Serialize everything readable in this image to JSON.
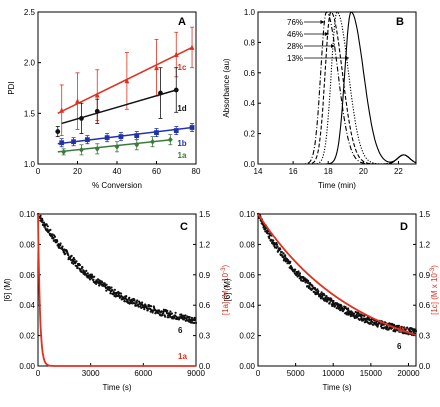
{
  "colors": {
    "red": "#e0301e",
    "black": "#111111",
    "blue": "#2233aa",
    "green": "#3a7a3a",
    "axis": "#000000"
  },
  "chart_data": [
    {
      "panel": "A",
      "type": "scatter",
      "xlabel": "% Conversion",
      "ylabel": "PDI",
      "xlim": [
        0,
        80
      ],
      "ylim": [
        1.0,
        2.5
      ],
      "xticks": [
        "0",
        "20",
        "40",
        "60",
        "80"
      ],
      "yticks": [
        "1.0",
        "1.5",
        "2.0",
        "2.5"
      ],
      "series": [
        {
          "name": "1c",
          "color": "#e0301e",
          "marker": "triangle",
          "x": [
            12,
            20,
            30,
            45,
            60,
            70,
            78
          ],
          "y": [
            1.53,
            1.62,
            1.68,
            1.82,
            1.95,
            2.08,
            2.15
          ],
          "err": [
            0.25,
            0.28,
            0.25,
            0.28,
            0.28,
            0.22,
            0.2
          ],
          "fit": [
            [
              10,
              1.5
            ],
            [
              78,
              2.15
            ]
          ]
        },
        {
          "name": "1d",
          "color": "#111111",
          "marker": "circle",
          "x": [
            10,
            22,
            30,
            62,
            70
          ],
          "y": [
            1.32,
            1.45,
            1.52,
            1.7,
            1.73
          ],
          "err": [
            0.05,
            0.15,
            0.12,
            0.25,
            0.22
          ],
          "fit": [
            [
              12,
              1.4
            ],
            [
              70,
              1.73
            ]
          ]
        },
        {
          "name": "1b",
          "color": "#2233aa",
          "marker": "square",
          "x": [
            12,
            18,
            25,
            35,
            42,
            50,
            60,
            70,
            78
          ],
          "y": [
            1.21,
            1.22,
            1.24,
            1.26,
            1.27,
            1.28,
            1.31,
            1.33,
            1.36
          ],
          "err": [
            0.04,
            0.04,
            0.04,
            0.04,
            0.04,
            0.04,
            0.04,
            0.04,
            0.04
          ],
          "fit": [
            [
              10,
              1.2
            ],
            [
              78,
              1.36
            ]
          ]
        },
        {
          "name": "1a",
          "color": "#3a7a3a",
          "marker": "diamond",
          "x": [
            13,
            22,
            30,
            40,
            50,
            58,
            67
          ],
          "y": [
            1.12,
            1.14,
            1.15,
            1.17,
            1.19,
            1.22,
            1.24
          ],
          "err": [
            0.03,
            0.05,
            0.05,
            0.05,
            0.05,
            0.05,
            0.05
          ],
          "fit": [
            [
              10,
              1.12
            ],
            [
              68,
              1.24
            ]
          ]
        }
      ]
    },
    {
      "panel": "B",
      "type": "line",
      "xlabel": "Time (min)",
      "ylabel": "Absorbance (au)",
      "xlim": [
        14,
        23
      ],
      "ylim": [
        0.0,
        1.0
      ],
      "xticks": [
        "14",
        "16",
        "18",
        "20",
        "22"
      ],
      "yticks": [
        "0.0",
        "0.2",
        "0.4",
        "0.6",
        "0.8",
        "1.0"
      ],
      "annotations": [
        "76%",
        "46%",
        "28%",
        "13%"
      ],
      "series": [
        {
          "name": "76%",
          "peak": 17.9,
          "width": 0.55,
          "dash": "dashdot"
        },
        {
          "name": "46%",
          "peak": 18.15,
          "width": 0.55,
          "dash": "dash"
        },
        {
          "name": "28%",
          "peak": 18.5,
          "width": 0.55,
          "dash": "dot"
        },
        {
          "name": "13%",
          "peak": 19.3,
          "width": 0.6,
          "dash": "solid"
        }
      ]
    },
    {
      "panel": "C",
      "type": "scatter",
      "xlabel": "Time (s)",
      "ylabel": "[6] (M)",
      "y2label": "[1a] (M x 10",
      "y2label_sup": "-3",
      "y2label_end": ")",
      "xlim": [
        0,
        9000
      ],
      "ylim": [
        0.0,
        0.1
      ],
      "y2lim": [
        0.0,
        1.5
      ],
      "xticks": [
        "0",
        "3000",
        "6000",
        "9000"
      ],
      "yticks": [
        "0.00",
        "0.02",
        "0.04",
        "0.06",
        "0.08",
        "0.10"
      ],
      "y2ticks": [
        "0.0",
        "0.3",
        "0.6",
        "0.9",
        "1.2",
        "1.5"
      ],
      "series": [
        {
          "name": "6",
          "color": "#111111",
          "y0": 0.1,
          "yinf": 0.022,
          "tau": 4000
        },
        {
          "name": "1a",
          "color": "#e0301e",
          "y0": 1.5,
          "yinf": 0.0,
          "tau": 110
        }
      ]
    },
    {
      "panel": "D",
      "type": "scatter",
      "xlabel": "Time (s)",
      "ylabel": "[6] (M)",
      "y2label": "[1c] (M x 10",
      "y2label_sup": "-3",
      "y2label_end": ")",
      "xlim": [
        0,
        21000
      ],
      "ylim": [
        0.0,
        0.1
      ],
      "y2lim": [
        0.0,
        1.5
      ],
      "xticks": [
        "0",
        "5000",
        "10000",
        "15000",
        "20000"
      ],
      "yticks": [
        "0.00",
        "0.02",
        "0.04",
        "0.06",
        "0.08",
        "0.10"
      ],
      "y2ticks": [
        "0.0",
        "0.3",
        "0.6",
        "0.9",
        "1.2",
        "1.5"
      ],
      "series": [
        {
          "name": "6",
          "color": "#111111",
          "y0": 0.1,
          "yinf": 0.015,
          "tau": 8500
        },
        {
          "name": "1c",
          "color": "#e0301e",
          "y0": 1.5,
          "yinf": 0.0,
          "tau": 13200
        }
      ]
    }
  ]
}
